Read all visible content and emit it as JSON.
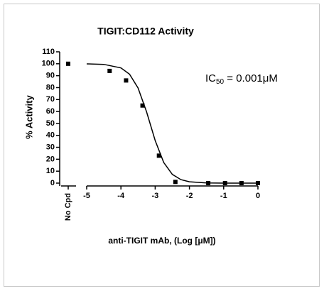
{
  "chart_data": {
    "type": "scatter",
    "title": "TIGIT:CD112 Activity",
    "x_label": "anti-TIGIT mAb, (Log [μM])",
    "y_label": "% Activity",
    "annotation": {
      "main": "IC",
      "subscript": "50",
      "rest": " = 0.001μM"
    },
    "control": {
      "category": "No Cpd",
      "value": 100
    },
    "series": [
      {
        "color": "#000000",
        "x": [
          -4.33,
          -3.85,
          -3.37,
          -2.89,
          -2.41,
          -1.45,
          -0.96,
          -0.48,
          0
        ],
        "values": [
          94,
          86,
          65,
          23,
          1,
          0,
          0,
          0,
          0
        ]
      }
    ],
    "curve": {
      "color": "#000000",
      "x": [
        -5,
        -4.5,
        -4,
        -3.75,
        -3.5,
        -3.25,
        -3,
        -2.75,
        -2.5,
        -2.25,
        -2,
        -1.5,
        -1,
        -0.5,
        0
      ],
      "values": [
        99.9,
        99.5,
        96.5,
        91.3,
        79.7,
        59.7,
        35.7,
        17.3,
        7.3,
        2.9,
        1.1,
        0.2,
        0,
        0,
        0
      ]
    },
    "xlim": [
      -5,
      0
    ],
    "xticks": [
      -5,
      -4,
      -3,
      -2,
      -1,
      0
    ],
    "ylim": [
      0,
      110
    ],
    "yticks": [
      0,
      10,
      20,
      30,
      40,
      50,
      60,
      70,
      80,
      90,
      100,
      110
    ]
  }
}
